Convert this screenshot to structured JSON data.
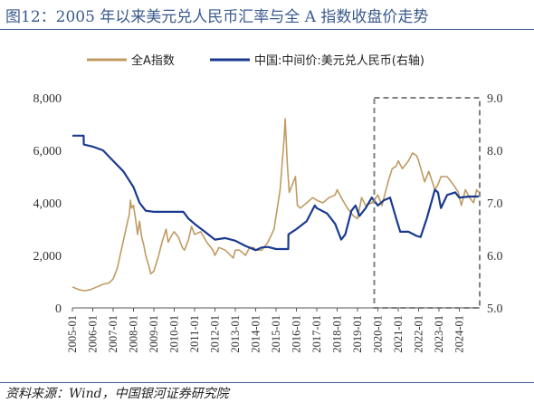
{
  "header": {
    "title": "图12：2005 年以来美元兑人民币汇率与全 A 指数收盘价走势"
  },
  "footer": {
    "source": "资料来源：Wind，中国银河证券研究院"
  },
  "colors": {
    "title": "#3a5a8c",
    "series_a": "#c09a62",
    "series_b": "#1a3a8f",
    "highlight_box": "#808080"
  },
  "chart_data": {
    "type": "line",
    "categories": [
      "2005-01",
      "2006-01",
      "2007-01",
      "2008-01",
      "2009-01",
      "2010-01",
      "2011-01",
      "2012-01",
      "2013-01",
      "2014-01",
      "2015-01",
      "2016-01",
      "2017-01",
      "2018-01",
      "2019-01",
      "2020-01",
      "2021-01",
      "2022-01",
      "2023-01",
      "2024-01"
    ],
    "y_left": {
      "ticks": [
        "0",
        "2,000",
        "4,000",
        "6,000",
        "8,000"
      ],
      "range": [
        0,
        8000
      ]
    },
    "y_right": {
      "ticks": [
        "5.0",
        "6.0",
        "7.0",
        "8.0",
        "9.0"
      ],
      "range": [
        5.0,
        9.0
      ]
    },
    "legend": {
      "placement": "top"
    },
    "series": [
      {
        "name": "全A指数",
        "axis": "left",
        "color": "#c09a62",
        "points": [
          [
            2005.0,
            800
          ],
          [
            2005.3,
            700
          ],
          [
            2005.6,
            650
          ],
          [
            2005.9,
            700
          ],
          [
            2006.2,
            800
          ],
          [
            2006.5,
            900
          ],
          [
            2006.8,
            950
          ],
          [
            2007.0,
            1100
          ],
          [
            2007.2,
            1500
          ],
          [
            2007.4,
            2200
          ],
          [
            2007.6,
            2900
          ],
          [
            2007.8,
            3600
          ],
          [
            2007.85,
            4100
          ],
          [
            2007.9,
            3800
          ],
          [
            2008.0,
            3900
          ],
          [
            2008.1,
            3400
          ],
          [
            2008.2,
            2800
          ],
          [
            2008.3,
            3300
          ],
          [
            2008.4,
            2700
          ],
          [
            2008.5,
            2400
          ],
          [
            2008.6,
            2000
          ],
          [
            2008.75,
            1600
          ],
          [
            2008.85,
            1300
          ],
          [
            2009.0,
            1400
          ],
          [
            2009.2,
            1900
          ],
          [
            2009.4,
            2500
          ],
          [
            2009.6,
            3000
          ],
          [
            2009.7,
            2500
          ],
          [
            2009.9,
            2800
          ],
          [
            2010.0,
            2900
          ],
          [
            2010.2,
            2700
          ],
          [
            2010.4,
            2300
          ],
          [
            2010.5,
            2200
          ],
          [
            2010.7,
            2600
          ],
          [
            2010.85,
            3100
          ],
          [
            2011.0,
            2800
          ],
          [
            2011.3,
            2900
          ],
          [
            2011.6,
            2500
          ],
          [
            2011.9,
            2200
          ],
          [
            2012.0,
            2000
          ],
          [
            2012.2,
            2300
          ],
          [
            2012.5,
            2200
          ],
          [
            2012.9,
            1900
          ],
          [
            2013.0,
            2200
          ],
          [
            2013.2,
            2200
          ],
          [
            2013.5,
            2000
          ],
          [
            2013.7,
            2300
          ],
          [
            2013.9,
            2300
          ],
          [
            2014.0,
            2200
          ],
          [
            2014.3,
            2200
          ],
          [
            2014.6,
            2500
          ],
          [
            2014.9,
            3000
          ],
          [
            2015.0,
            3500
          ],
          [
            2015.2,
            4500
          ],
          [
            2015.4,
            6500
          ],
          [
            2015.45,
            7200
          ],
          [
            2015.55,
            5500
          ],
          [
            2015.65,
            4400
          ],
          [
            2015.8,
            4700
          ],
          [
            2015.95,
            5000
          ],
          [
            2016.05,
            3900
          ],
          [
            2016.2,
            3800
          ],
          [
            2016.5,
            4000
          ],
          [
            2016.8,
            4200
          ],
          [
            2017.0,
            4100
          ],
          [
            2017.3,
            4000
          ],
          [
            2017.6,
            4200
          ],
          [
            2017.9,
            4300
          ],
          [
            2018.0,
            4500
          ],
          [
            2018.2,
            4200
          ],
          [
            2018.5,
            3800
          ],
          [
            2018.8,
            3500
          ],
          [
            2019.0,
            3400
          ],
          [
            2019.2,
            4200
          ],
          [
            2019.4,
            3900
          ],
          [
            2019.7,
            4000
          ],
          [
            2019.9,
            4200
          ],
          [
            2020.0,
            4300
          ],
          [
            2020.2,
            3900
          ],
          [
            2020.5,
            4800
          ],
          [
            2020.7,
            5300
          ],
          [
            2020.9,
            5400
          ],
          [
            2021.0,
            5600
          ],
          [
            2021.2,
            5300
          ],
          [
            2021.5,
            5600
          ],
          [
            2021.7,
            5900
          ],
          [
            2021.9,
            5800
          ],
          [
            2022.0,
            5600
          ],
          [
            2022.3,
            4800
          ],
          [
            2022.5,
            5200
          ],
          [
            2022.8,
            4500
          ],
          [
            2022.95,
            4700
          ],
          [
            2023.1,
            5000
          ],
          [
            2023.4,
            5000
          ],
          [
            2023.7,
            4700
          ],
          [
            2023.95,
            4400
          ],
          [
            2024.1,
            3900
          ],
          [
            2024.3,
            4500
          ],
          [
            2024.5,
            4200
          ],
          [
            2024.7,
            4000
          ],
          [
            2024.85,
            4500
          ],
          [
            2024.95,
            4400
          ]
        ]
      },
      {
        "name": "中国:中间价:美元兑人民币(右轴)",
        "axis": "right",
        "color": "#1a3a8f",
        "points": [
          [
            2005.0,
            8.28
          ],
          [
            2005.55,
            8.28
          ],
          [
            2005.56,
            8.11
          ],
          [
            2006.0,
            8.07
          ],
          [
            2006.5,
            8.0
          ],
          [
            2007.0,
            7.8
          ],
          [
            2007.5,
            7.6
          ],
          [
            2008.0,
            7.3
          ],
          [
            2008.3,
            7.0
          ],
          [
            2008.6,
            6.85
          ],
          [
            2009.0,
            6.83
          ],
          [
            2009.5,
            6.83
          ],
          [
            2010.0,
            6.83
          ],
          [
            2010.45,
            6.83
          ],
          [
            2010.7,
            6.7
          ],
          [
            2011.0,
            6.6
          ],
          [
            2011.5,
            6.45
          ],
          [
            2012.0,
            6.3
          ],
          [
            2012.5,
            6.33
          ],
          [
            2013.0,
            6.28
          ],
          [
            2013.5,
            6.18
          ],
          [
            2014.0,
            6.1
          ],
          [
            2014.3,
            6.15
          ],
          [
            2014.6,
            6.16
          ],
          [
            2015.0,
            6.12
          ],
          [
            2015.6,
            6.12
          ],
          [
            2015.61,
            6.4
          ],
          [
            2016.0,
            6.5
          ],
          [
            2016.5,
            6.65
          ],
          [
            2016.9,
            6.95
          ],
          [
            2017.0,
            6.9
          ],
          [
            2017.5,
            6.8
          ],
          [
            2017.9,
            6.6
          ],
          [
            2018.2,
            6.3
          ],
          [
            2018.4,
            6.4
          ],
          [
            2018.7,
            6.85
          ],
          [
            2018.9,
            6.95
          ],
          [
            2019.1,
            6.75
          ],
          [
            2019.4,
            6.9
          ],
          [
            2019.7,
            7.1
          ],
          [
            2020.0,
            6.95
          ],
          [
            2020.3,
            7.05
          ],
          [
            2020.6,
            7.1
          ],
          [
            2020.9,
            6.7
          ],
          [
            2021.1,
            6.45
          ],
          [
            2021.5,
            6.45
          ],
          [
            2021.9,
            6.37
          ],
          [
            2022.1,
            6.35
          ],
          [
            2022.4,
            6.7
          ],
          [
            2022.8,
            7.25
          ],
          [
            2022.95,
            7.2
          ],
          [
            2023.1,
            6.9
          ],
          [
            2023.4,
            7.15
          ],
          [
            2023.8,
            7.2
          ],
          [
            2024.0,
            7.1
          ],
          [
            2024.5,
            7.12
          ],
          [
            2024.95,
            7.12
          ]
        ]
      }
    ],
    "annotations": [
      {
        "type": "dashed-rectangle",
        "x_from": 2020.0,
        "x_to": 2025.0,
        "y_from_right": 5.0,
        "y_to_right": 9.0
      }
    ]
  }
}
